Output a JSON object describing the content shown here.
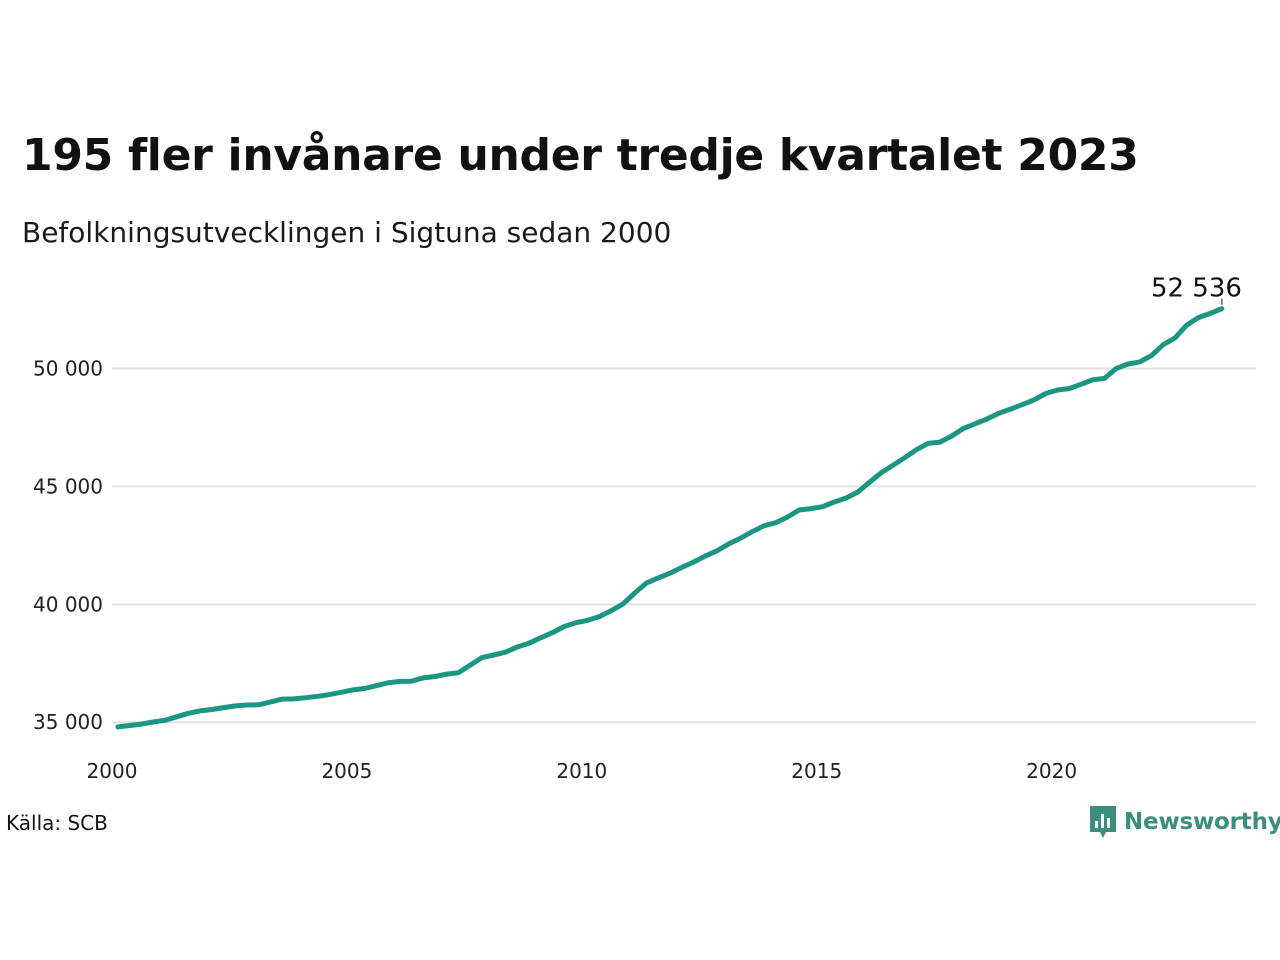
{
  "title": "195 fler invånare under tredje kvartalet 2023",
  "subtitle": "Befolkningsutvecklingen i Sigtuna sedan 2000",
  "source": "Källa: SCB",
  "brand": {
    "name": "Newsworthy",
    "icon": "newsworthy-logo-icon",
    "color": "#3b8f7c"
  },
  "chart_data": {
    "type": "line",
    "title": "195 fler invånare under tredje kvartalet 2023",
    "subtitle": "Befolkningsutvecklingen i Sigtuna sedan 2000",
    "line_color": "#1b9683",
    "grid": true,
    "grid_color": "#e2e2e2",
    "xlim": [
      2000,
      2024.35
    ],
    "ylim": [
      34500,
      53500
    ],
    "x_ticks": [
      {
        "value": 2000,
        "label": "2000"
      },
      {
        "value": 2005,
        "label": "2005"
      },
      {
        "value": 2010,
        "label": "2010"
      },
      {
        "value": 2015,
        "label": "2015"
      },
      {
        "value": 2020,
        "label": "2020"
      }
    ],
    "y_ticks": [
      {
        "value": 35000,
        "label": "35 000"
      },
      {
        "value": 40000,
        "label": "40 000"
      },
      {
        "value": 45000,
        "label": "45 000"
      },
      {
        "value": 50000,
        "label": "50 000"
      }
    ],
    "end_label": "52 536",
    "series": [
      {
        "points": [
          [
            2000.125,
            34800
          ],
          [
            2000.375,
            34860
          ],
          [
            2000.625,
            34920
          ],
          [
            2000.875,
            35010
          ],
          [
            2001.125,
            35080
          ],
          [
            2001.375,
            35230
          ],
          [
            2001.625,
            35380
          ],
          [
            2001.875,
            35480
          ],
          [
            2002.125,
            35540
          ],
          [
            2002.375,
            35620
          ],
          [
            2002.625,
            35690
          ],
          [
            2002.875,
            35730
          ],
          [
            2003.125,
            35740
          ],
          [
            2003.375,
            35860
          ],
          [
            2003.625,
            35980
          ],
          [
            2003.875,
            35990
          ],
          [
            2004.125,
            36040
          ],
          [
            2004.375,
            36100
          ],
          [
            2004.625,
            36170
          ],
          [
            2004.875,
            36270
          ],
          [
            2005.125,
            36370
          ],
          [
            2005.375,
            36430
          ],
          [
            2005.625,
            36550
          ],
          [
            2005.875,
            36670
          ],
          [
            2006.125,
            36730
          ],
          [
            2006.375,
            36740
          ],
          [
            2006.625,
            36880
          ],
          [
            2006.875,
            36940
          ],
          [
            2007.125,
            37040
          ],
          [
            2007.375,
            37100
          ],
          [
            2007.625,
            37420
          ],
          [
            2007.875,
            37740
          ],
          [
            2008.125,
            37850
          ],
          [
            2008.375,
            37970
          ],
          [
            2008.625,
            38190
          ],
          [
            2008.875,
            38350
          ],
          [
            2009.125,
            38580
          ],
          [
            2009.375,
            38800
          ],
          [
            2009.625,
            39060
          ],
          [
            2009.875,
            39220
          ],
          [
            2010.125,
            39320
          ],
          [
            2010.375,
            39480
          ],
          [
            2010.625,
            39730
          ],
          [
            2010.875,
            40010
          ],
          [
            2011.125,
            40480
          ],
          [
            2011.375,
            40900
          ],
          [
            2011.625,
            41120
          ],
          [
            2011.875,
            41320
          ],
          [
            2012.125,
            41560
          ],
          [
            2012.375,
            41790
          ],
          [
            2012.625,
            42040
          ],
          [
            2012.875,
            42270
          ],
          [
            2013.125,
            42560
          ],
          [
            2013.375,
            42800
          ],
          [
            2013.625,
            43080
          ],
          [
            2013.875,
            43330
          ],
          [
            2014.125,
            43460
          ],
          [
            2014.375,
            43700
          ],
          [
            2014.625,
            44000
          ],
          [
            2014.875,
            44060
          ],
          [
            2015.125,
            44140
          ],
          [
            2015.375,
            44340
          ],
          [
            2015.625,
            44510
          ],
          [
            2015.875,
            44760
          ],
          [
            2016.125,
            45180
          ],
          [
            2016.375,
            45580
          ],
          [
            2016.625,
            45900
          ],
          [
            2016.875,
            46220
          ],
          [
            2017.125,
            46560
          ],
          [
            2017.375,
            46830
          ],
          [
            2017.625,
            46880
          ],
          [
            2017.875,
            47140
          ],
          [
            2018.125,
            47460
          ],
          [
            2018.375,
            47660
          ],
          [
            2018.625,
            47860
          ],
          [
            2018.875,
            48100
          ],
          [
            2019.125,
            48280
          ],
          [
            2019.375,
            48470
          ],
          [
            2019.625,
            48670
          ],
          [
            2019.875,
            48940
          ],
          [
            2020.125,
            49090
          ],
          [
            2020.375,
            49150
          ],
          [
            2020.625,
            49330
          ],
          [
            2020.875,
            49520
          ],
          [
            2021.125,
            49580
          ],
          [
            2021.375,
            50000
          ],
          [
            2021.625,
            50190
          ],
          [
            2021.875,
            50280
          ],
          [
            2022.125,
            50550
          ],
          [
            2022.375,
            51010
          ],
          [
            2022.625,
            51300
          ],
          [
            2022.875,
            51840
          ],
          [
            2023.125,
            52160
          ],
          [
            2023.375,
            52340
          ],
          [
            2023.625,
            52536
          ]
        ]
      }
    ]
  }
}
